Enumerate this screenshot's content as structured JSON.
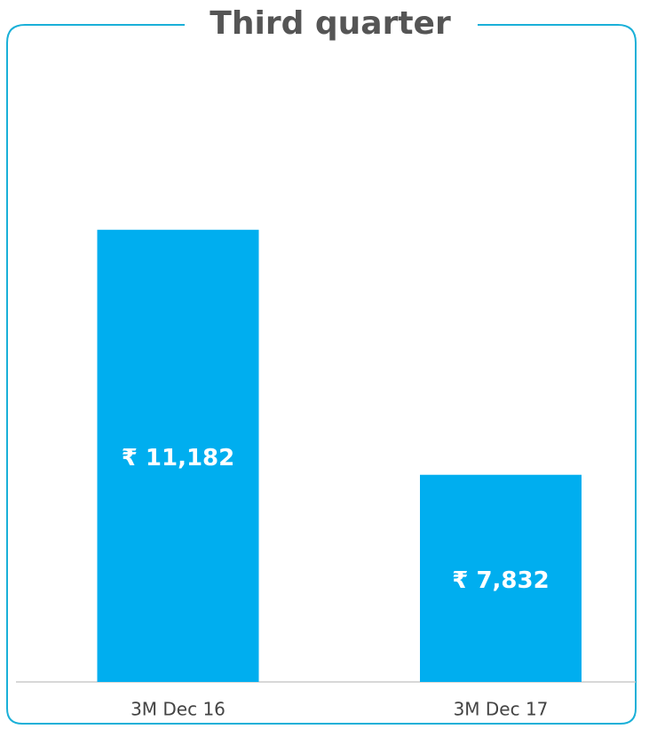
{
  "chart_data": {
    "type": "bar",
    "title": "Third quarter",
    "categories": [
      "3M Dec 16",
      "3M Dec 17"
    ],
    "values": [
      11182,
      7832
    ],
    "value_labels": [
      "₹ 11,182",
      "₹ 7,832"
    ],
    "color": "#00aeef",
    "ylim": [
      5000,
      13000
    ]
  }
}
